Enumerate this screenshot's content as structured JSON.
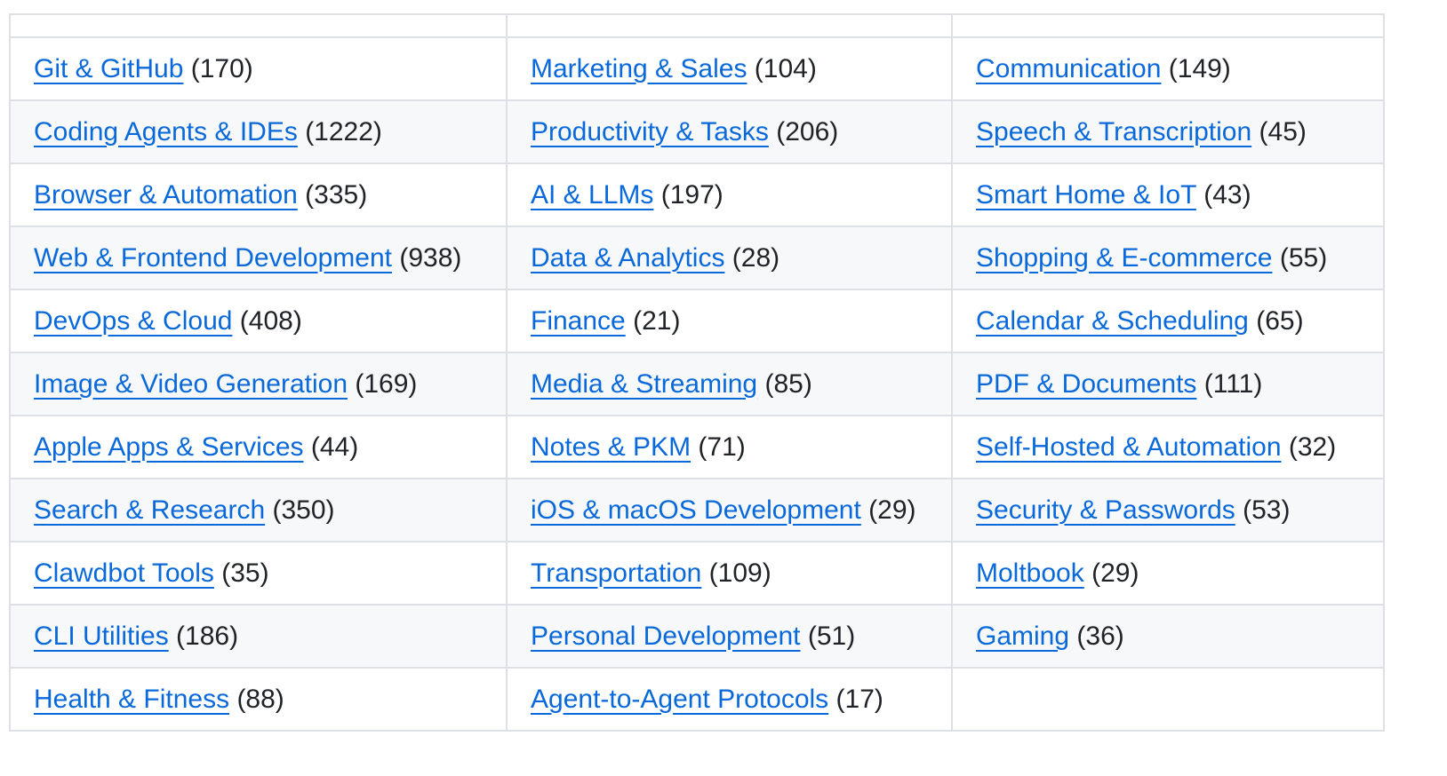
{
  "header": [
    "",
    "",
    ""
  ],
  "rows": [
    [
      {
        "label": "Git & GitHub",
        "count": "(170)"
      },
      {
        "label": "Marketing & Sales",
        "count": "(104)"
      },
      {
        "label": "Communication",
        "count": "(149)"
      }
    ],
    [
      {
        "label": "Coding Agents & IDEs",
        "count": "(1222)"
      },
      {
        "label": "Productivity & Tasks",
        "count": "(206)"
      },
      {
        "label": "Speech & Transcription",
        "count": "(45)"
      }
    ],
    [
      {
        "label": "Browser & Automation",
        "count": "(335)"
      },
      {
        "label": "AI & LLMs",
        "count": "(197)"
      },
      {
        "label": "Smart Home & IoT",
        "count": "(43)"
      }
    ],
    [
      {
        "label": "Web & Frontend Development",
        "count": "(938)"
      },
      {
        "label": "Data & Analytics",
        "count": "(28)"
      },
      {
        "label": "Shopping & E-commerce",
        "count": "(55)"
      }
    ],
    [
      {
        "label": "DevOps & Cloud",
        "count": "(408)"
      },
      {
        "label": "Finance",
        "count": "(21)"
      },
      {
        "label": "Calendar & Scheduling",
        "count": "(65)"
      }
    ],
    [
      {
        "label": "Image & Video Generation",
        "count": "(169)"
      },
      {
        "label": "Media & Streaming",
        "count": "(85)"
      },
      {
        "label": "PDF & Documents",
        "count": "(111)"
      }
    ],
    [
      {
        "label": "Apple Apps & Services",
        "count": "(44)"
      },
      {
        "label": "Notes & PKM",
        "count": "(71)"
      },
      {
        "label": "Self-Hosted & Automation",
        "count": "(32)"
      }
    ],
    [
      {
        "label": "Search & Research",
        "count": "(350)"
      },
      {
        "label": "iOS & macOS Development",
        "count": "(29)"
      },
      {
        "label": "Security & Passwords",
        "count": "(53)"
      }
    ],
    [
      {
        "label": "Clawdbot Tools",
        "count": "(35)"
      },
      {
        "label": "Transportation",
        "count": "(109)"
      },
      {
        "label": "Moltbook",
        "count": "(29)"
      }
    ],
    [
      {
        "label": "CLI Utilities",
        "count": "(186)"
      },
      {
        "label": "Personal Development",
        "count": "(51)"
      },
      {
        "label": "Gaming",
        "count": "(36)"
      }
    ],
    [
      {
        "label": "Health & Fitness",
        "count": "(88)"
      },
      {
        "label": "Agent-to-Agent Protocols",
        "count": "(17)"
      },
      null
    ]
  ]
}
